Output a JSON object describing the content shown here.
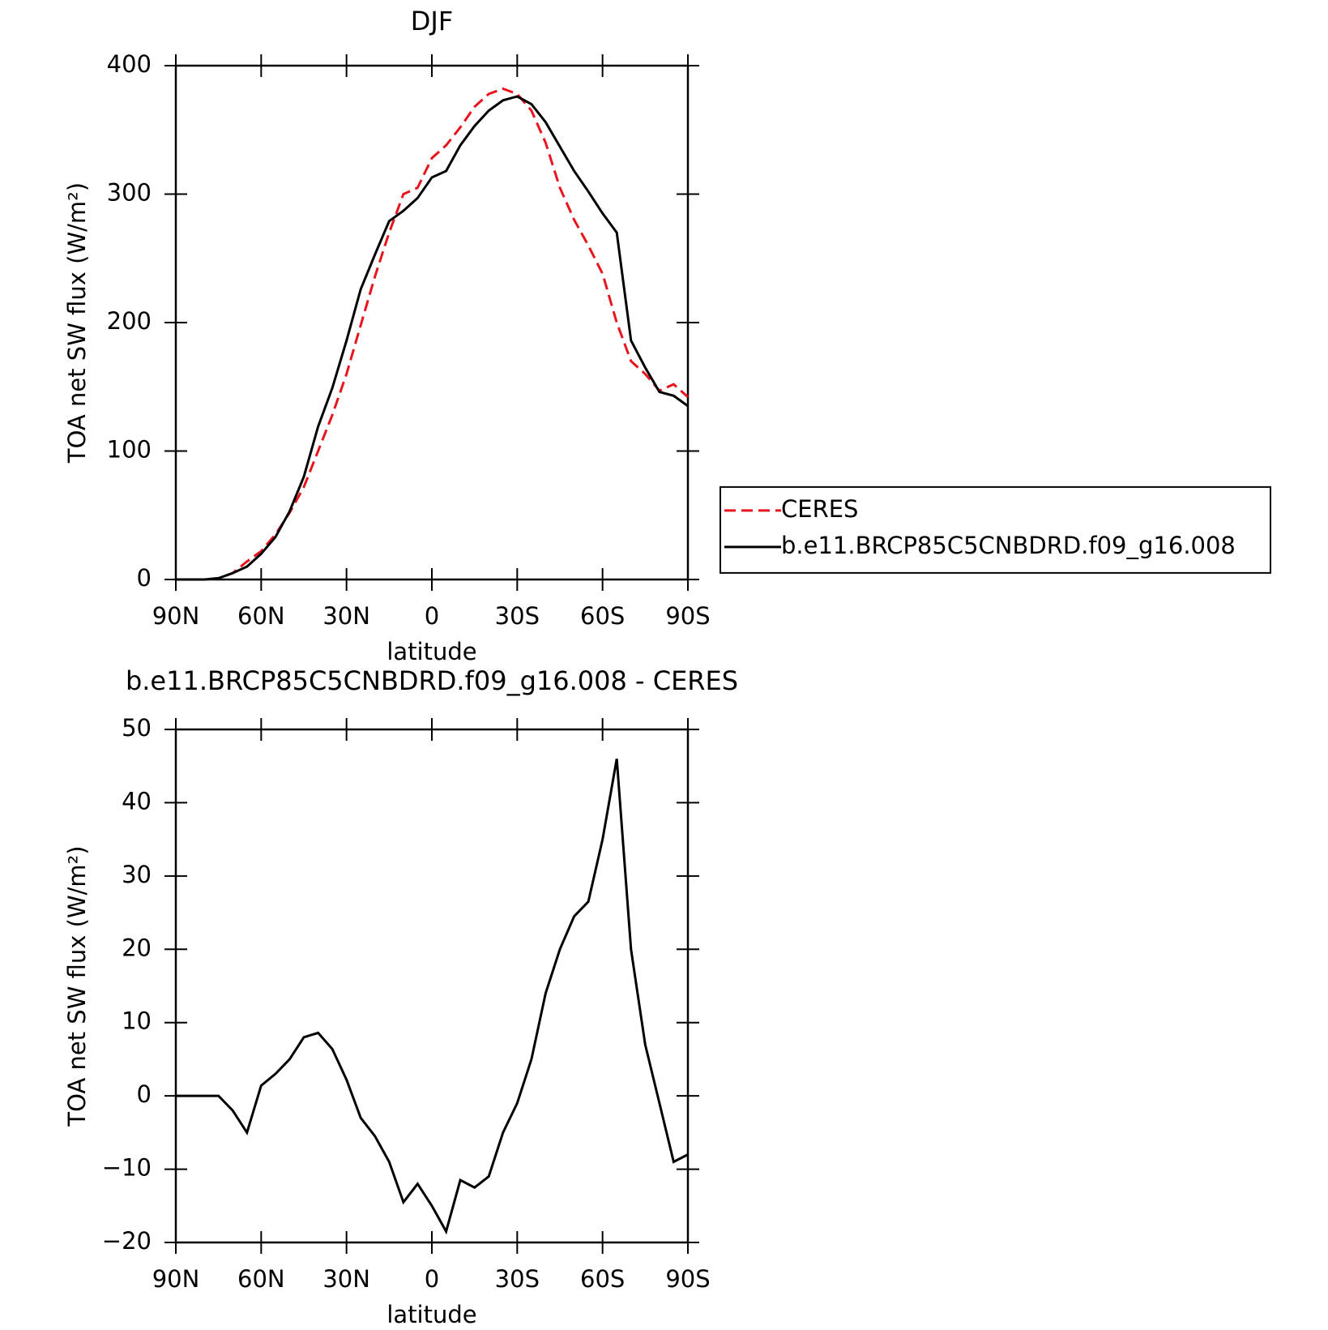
{
  "chart_data": [
    {
      "type": "line",
      "title": "DJF",
      "xlabel": "latitude",
      "ylabel": "TOA net SW flux (W/m²)",
      "x": [
        90,
        85,
        80,
        75,
        70,
        65,
        60,
        55,
        50,
        45,
        40,
        35,
        30,
        25,
        20,
        15,
        10,
        5,
        0,
        -5,
        -10,
        -15,
        -20,
        -25,
        -30,
        -35,
        -40,
        -45,
        -50,
        -55,
        -60,
        -65,
        -70,
        -75,
        -80,
        -85,
        -90
      ],
      "series": [
        {
          "name": "CERES",
          "color": "#e8141e",
          "dash": true,
          "values": [
            0,
            0,
            0,
            1,
            5,
            14,
            22,
            35,
            52,
            72,
            100,
            128,
            160,
            198,
            236,
            270,
            300,
            305,
            328,
            338,
            352,
            368,
            378,
            382,
            378,
            365,
            340,
            305,
            280,
            260,
            238,
            200,
            170,
            160,
            147,
            152,
            142
          ]
        },
        {
          "name": "b.e11.BRCP85C5CNBDRD.f09_g16.008",
          "color": "#000000",
          "dash": false,
          "values": [
            0,
            0,
            0,
            1,
            5,
            10,
            20,
            33,
            53,
            80,
            119,
            149,
            186,
            226,
            253,
            279,
            287,
            297,
            313,
            318,
            338,
            353,
            365,
            373,
            376,
            370,
            356,
            337,
            318,
            302,
            285,
            270,
            186,
            165,
            146,
            143,
            135
          ]
        }
      ],
      "xlim": [
        90,
        -90
      ],
      "xticks": [
        {
          "value": 90,
          "label": "90N"
        },
        {
          "value": 60,
          "label": "60N"
        },
        {
          "value": 30,
          "label": "30N"
        },
        0,
        {
          "value": -30,
          "label": "30S"
        },
        {
          "value": -60,
          "label": "60S"
        },
        {
          "value": -90,
          "label": "90S"
        }
      ],
      "ylim": [
        0,
        400
      ],
      "yticks": [
        0,
        100,
        200,
        300,
        400
      ],
      "legend": "right"
    },
    {
      "type": "line",
      "title": "b.e11.BRCP85C5CNBDRD.f09_g16.008 - CERES",
      "xlabel": "latitude",
      "ylabel": "TOA net SW flux (W/m²)",
      "x": [
        90,
        85,
        80,
        75,
        70,
        65,
        60,
        55,
        50,
        45,
        40,
        35,
        30,
        25,
        20,
        15,
        10,
        5,
        0,
        -5,
        -10,
        -15,
        -20,
        -25,
        -30,
        -35,
        -40,
        -45,
        -50,
        -55,
        -60,
        -65,
        -70,
        -75,
        -80,
        -85,
        -90
      ],
      "values": [
        0,
        0,
        0,
        0,
        -2,
        -5,
        1.4,
        3,
        5,
        8,
        8.6,
        6.4,
        2.2,
        -3,
        -5.5,
        -9,
        -14.5,
        -12,
        -15,
        -18.5,
        -11.5,
        -12.5,
        -11,
        -5,
        -1,
        5,
        14,
        20,
        24.5,
        26.5,
        35,
        46,
        20,
        7,
        -1,
        -9,
        -8
      ],
      "color": "#000000",
      "xlim": [
        90,
        -90
      ],
      "xticks": [
        {
          "value": 90,
          "label": "90N"
        },
        {
          "value": 60,
          "label": "60N"
        },
        {
          "value": 30,
          "label": "30N"
        },
        0,
        {
          "value": -30,
          "label": "30S"
        },
        {
          "value": -60,
          "label": "60S"
        },
        {
          "value": -90,
          "label": "90S"
        }
      ],
      "ylim": [
        -20,
        50
      ],
      "yticks": [
        {
          "value": -20,
          "label": "−20"
        },
        {
          "value": -10,
          "label": "−10"
        },
        0,
        10,
        20,
        30,
        40,
        50
      ]
    }
  ]
}
